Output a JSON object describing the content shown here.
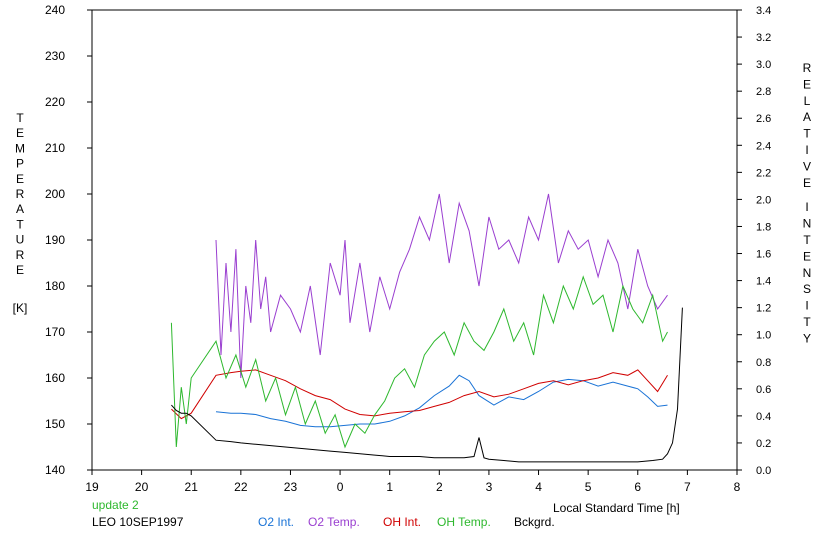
{
  "chart_data": {
    "type": "line",
    "title": "",
    "xlabel": "Local Standard Time [h]",
    "xlim": [
      19,
      8
    ],
    "x_ticks": [
      "19",
      "20",
      "21",
      "22",
      "23",
      "0",
      "1",
      "2",
      "3",
      "4",
      "5",
      "6",
      "7",
      "8"
    ],
    "y_left": {
      "label_letters": [
        "T",
        "E",
        "M",
        "P",
        "E",
        "R",
        "A",
        "T",
        "U",
        "R",
        "E"
      ],
      "unit": "[K]",
      "ylim": [
        140,
        240
      ],
      "ticks": [
        "140",
        "150",
        "160",
        "170",
        "180",
        "190",
        "200",
        "210",
        "220",
        "230",
        "240"
      ]
    },
    "y_right": {
      "label_words": [
        [
          "R",
          "E",
          "L",
          "A",
          "T",
          "I",
          "V",
          "E"
        ],
        [
          "I",
          "N",
          "T",
          "E",
          "N",
          "S",
          "I",
          "T",
          "Y"
        ]
      ],
      "ylim": [
        0.0,
        3.4
      ],
      "ticks": [
        "0.0",
        "0.2",
        "0.4",
        "0.6",
        "0.8",
        "1.0",
        "1.2",
        "1.4",
        "1.6",
        "1.8",
        "2.0",
        "2.2",
        "2.4",
        "2.6",
        "2.8",
        "3.0",
        "3.2",
        "3.4"
      ]
    },
    "grid": false,
    "annotations": {
      "update": "update 2",
      "station": "LEO 10SEP1997"
    },
    "legend_position": "bottom",
    "series": [
      {
        "name": "O2 Int.",
        "color": "#1a73d6",
        "axis": "right",
        "x": [
          21.5,
          21.8,
          22.0,
          22.3,
          22.6,
          22.9,
          23.2,
          23.5,
          23.8,
          0.1,
          0.4,
          0.7,
          1.0,
          1.3,
          1.6,
          1.9,
          2.2,
          2.4,
          2.6,
          2.8,
          3.1,
          3.4,
          3.7,
          4.0,
          4.3,
          4.6,
          4.9,
          5.2,
          5.5,
          5.8,
          6.0,
          6.2,
          6.4,
          6.6
        ],
        "y": [
          0.43,
          0.42,
          0.42,
          0.41,
          0.38,
          0.36,
          0.33,
          0.32,
          0.32,
          0.33,
          0.34,
          0.34,
          0.36,
          0.4,
          0.46,
          0.55,
          0.62,
          0.7,
          0.66,
          0.55,
          0.48,
          0.54,
          0.52,
          0.58,
          0.65,
          0.67,
          0.66,
          0.62,
          0.65,
          0.62,
          0.6,
          0.54,
          0.47,
          0.48
        ]
      },
      {
        "name": "O2 Temp.",
        "color": "#9a3fd0",
        "axis": "left",
        "x": [
          21.5,
          21.6,
          21.7,
          21.8,
          21.9,
          22.0,
          22.1,
          22.2,
          22.3,
          22.4,
          22.5,
          22.6,
          22.8,
          23.0,
          23.2,
          23.4,
          23.6,
          23.8,
          0.0,
          0.1,
          0.2,
          0.4,
          0.6,
          0.8,
          1.0,
          1.2,
          1.4,
          1.6,
          1.8,
          2.0,
          2.2,
          2.4,
          2.6,
          2.8,
          3.0,
          3.2,
          3.4,
          3.6,
          3.8,
          4.0,
          4.2,
          4.4,
          4.6,
          4.8,
          5.0,
          5.2,
          5.4,
          5.6,
          5.8,
          6.0,
          6.2,
          6.4,
          6.6
        ],
        "y": [
          190,
          165,
          185,
          170,
          188,
          160,
          180,
          172,
          190,
          175,
          182,
          170,
          178,
          175,
          170,
          180,
          165,
          185,
          178,
          190,
          172,
          185,
          170,
          182,
          175,
          183,
          188,
          195,
          190,
          200,
          185,
          198,
          192,
          180,
          195,
          188,
          190,
          185,
          195,
          190,
          200,
          185,
          192,
          188,
          190,
          182,
          190,
          185,
          175,
          188,
          180,
          175,
          178
        ]
      },
      {
        "name": "OH Int.",
        "color": "#d00000",
        "axis": "right",
        "x": [
          20.6,
          20.8,
          21.0,
          21.5,
          21.8,
          22.0,
          22.3,
          22.6,
          22.9,
          23.2,
          23.5,
          23.8,
          0.1,
          0.4,
          0.7,
          1.0,
          1.3,
          1.6,
          1.9,
          2.2,
          2.5,
          2.8,
          3.1,
          3.4,
          3.7,
          4.0,
          4.3,
          4.6,
          4.9,
          5.2,
          5.5,
          5.8,
          6.0,
          6.2,
          6.4,
          6.6
        ],
        "y": [
          0.45,
          0.38,
          0.42,
          0.7,
          0.72,
          0.73,
          0.74,
          0.7,
          0.66,
          0.6,
          0.55,
          0.52,
          0.45,
          0.41,
          0.4,
          0.42,
          0.43,
          0.44,
          0.47,
          0.5,
          0.55,
          0.58,
          0.54,
          0.56,
          0.6,
          0.64,
          0.66,
          0.63,
          0.66,
          0.68,
          0.72,
          0.7,
          0.74,
          0.66,
          0.58,
          0.7
        ]
      },
      {
        "name": "OH Temp.",
        "color": "#2eb82e",
        "axis": "left",
        "x": [
          20.6,
          20.7,
          20.8,
          20.9,
          21.0,
          21.5,
          21.7,
          21.9,
          22.1,
          22.3,
          22.5,
          22.7,
          22.9,
          23.1,
          23.3,
          23.5,
          23.7,
          23.9,
          0.1,
          0.3,
          0.5,
          0.7,
          0.9,
          1.1,
          1.3,
          1.5,
          1.7,
          1.9,
          2.1,
          2.3,
          2.5,
          2.7,
          2.9,
          3.1,
          3.3,
          3.5,
          3.7,
          3.9,
          4.1,
          4.3,
          4.5,
          4.7,
          4.9,
          5.1,
          5.3,
          5.5,
          5.7,
          5.9,
          6.1,
          6.3,
          6.5,
          6.6
        ],
        "y": [
          172,
          145,
          158,
          150,
          160,
          168,
          160,
          165,
          158,
          164,
          155,
          160,
          152,
          158,
          150,
          155,
          148,
          152,
          145,
          150,
          148,
          152,
          155,
          160,
          162,
          158,
          165,
          168,
          170,
          165,
          172,
          168,
          166,
          170,
          175,
          168,
          172,
          165,
          178,
          172,
          180,
          175,
          182,
          176,
          178,
          170,
          180,
          175,
          172,
          178,
          168,
          170
        ]
      },
      {
        "name": "Bckgrd.",
        "color": "#000000",
        "axis": "right",
        "x": [
          20.6,
          20.7,
          20.8,
          20.9,
          21.0,
          21.5,
          21.8,
          22.0,
          22.3,
          22.6,
          22.9,
          23.2,
          23.5,
          23.8,
          0.1,
          0.4,
          0.7,
          1.0,
          1.3,
          1.6,
          1.9,
          2.2,
          2.5,
          2.7,
          2.8,
          2.9,
          3.0,
          3.3,
          3.6,
          3.9,
          4.2,
          4.5,
          4.8,
          5.1,
          5.4,
          5.7,
          6.0,
          6.3,
          6.5,
          6.6,
          6.7,
          6.8,
          6.9
        ],
        "y": [
          0.48,
          0.44,
          0.42,
          0.42,
          0.4,
          0.22,
          0.21,
          0.2,
          0.19,
          0.18,
          0.17,
          0.16,
          0.15,
          0.14,
          0.13,
          0.12,
          0.11,
          0.1,
          0.1,
          0.1,
          0.09,
          0.09,
          0.09,
          0.1,
          0.24,
          0.09,
          0.08,
          0.07,
          0.06,
          0.06,
          0.06,
          0.06,
          0.06,
          0.06,
          0.06,
          0.06,
          0.06,
          0.07,
          0.08,
          0.12,
          0.2,
          0.45,
          1.2
        ]
      }
    ]
  }
}
